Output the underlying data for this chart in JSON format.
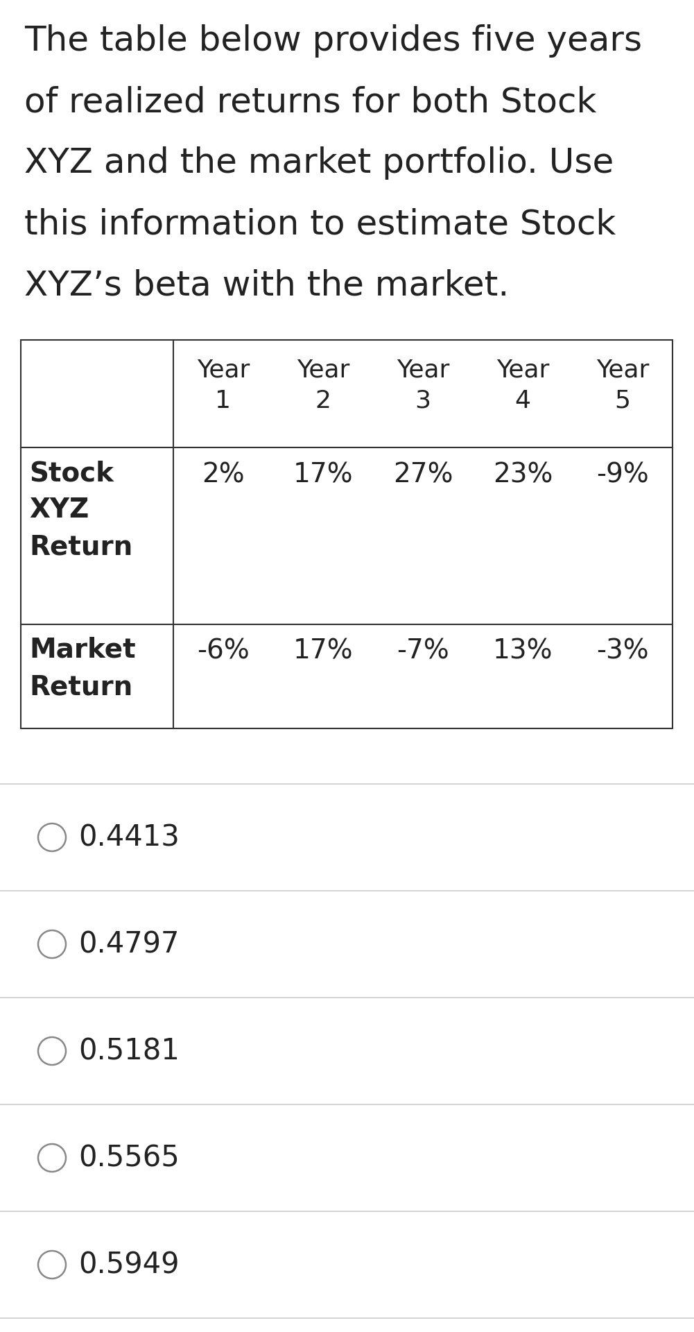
{
  "background_color": "#ffffff",
  "text_color": "#222222",
  "paragraph_lines": [
    "The table below provides five years",
    "of realized returns for both Stock",
    "XYZ and the market portfolio. Use",
    "this information to estimate Stock",
    "XYZ’s beta with the market."
  ],
  "options": [
    "0.4413",
    "0.4797",
    "0.5181",
    "0.5565",
    "0.5949"
  ],
  "font_size_paragraph": 36,
  "font_size_table_header": 26,
  "font_size_table_data": 28,
  "font_size_options": 30,
  "line_color": "#cccccc",
  "table_line_color": "#333333",
  "stock_returns": [
    "2%",
    "17%",
    "27%",
    "23%",
    "-9%"
  ],
  "market_returns": [
    "-6%",
    "17%",
    "-7%",
    "13%",
    "-3%"
  ],
  "year_labels": [
    "Year\n1",
    "Year\n2",
    "Year\n3",
    "Year\n4",
    "Year\n5"
  ]
}
